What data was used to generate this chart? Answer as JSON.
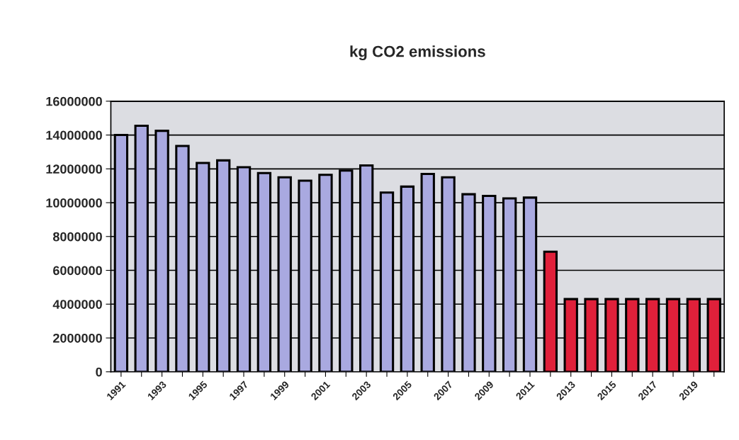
{
  "chart_data": {
    "type": "bar",
    "title": "kg CO2 emissions",
    "categories": [
      "1991",
      null,
      "1993",
      null,
      "1995",
      null,
      "1997",
      null,
      "1999",
      null,
      "2001",
      null,
      "2003",
      null,
      "2005",
      null,
      "2007",
      null,
      "2009",
      null,
      "2011",
      null,
      "2013",
      null,
      "2015",
      null,
      "2017",
      null,
      "2019",
      null
    ],
    "values": [
      14000000,
      14550000,
      14250000,
      13350000,
      12350000,
      12500000,
      12100000,
      11750000,
      11500000,
      11300000,
      11650000,
      11900000,
      12200000,
      10600000,
      10950000,
      11700000,
      11500000,
      10500000,
      10400000,
      10250000,
      10300000,
      7100000,
      4300000,
      4300000,
      4300000,
      4300000,
      4300000,
      4300000,
      4300000,
      4300000
    ],
    "colors": [
      "#a9a9e0",
      "#a9a9e0",
      "#a9a9e0",
      "#a9a9e0",
      "#a9a9e0",
      "#a9a9e0",
      "#a9a9e0",
      "#a9a9e0",
      "#a9a9e0",
      "#a9a9e0",
      "#a9a9e0",
      "#a9a9e0",
      "#a9a9e0",
      "#a9a9e0",
      "#a9a9e0",
      "#a9a9e0",
      "#a9a9e0",
      "#a9a9e0",
      "#a9a9e0",
      "#a9a9e0",
      "#a9a9e0",
      "#e0203a",
      "#e0203a",
      "#e0203a",
      "#e0203a",
      "#e0203a",
      "#e0203a",
      "#e0203a",
      "#e0203a",
      "#e0203a"
    ],
    "ylim": [
      0,
      16000000
    ],
    "yticks": [
      0,
      2000000,
      4000000,
      6000000,
      8000000,
      10000000,
      12000000,
      14000000,
      16000000
    ],
    "grid": "y"
  }
}
